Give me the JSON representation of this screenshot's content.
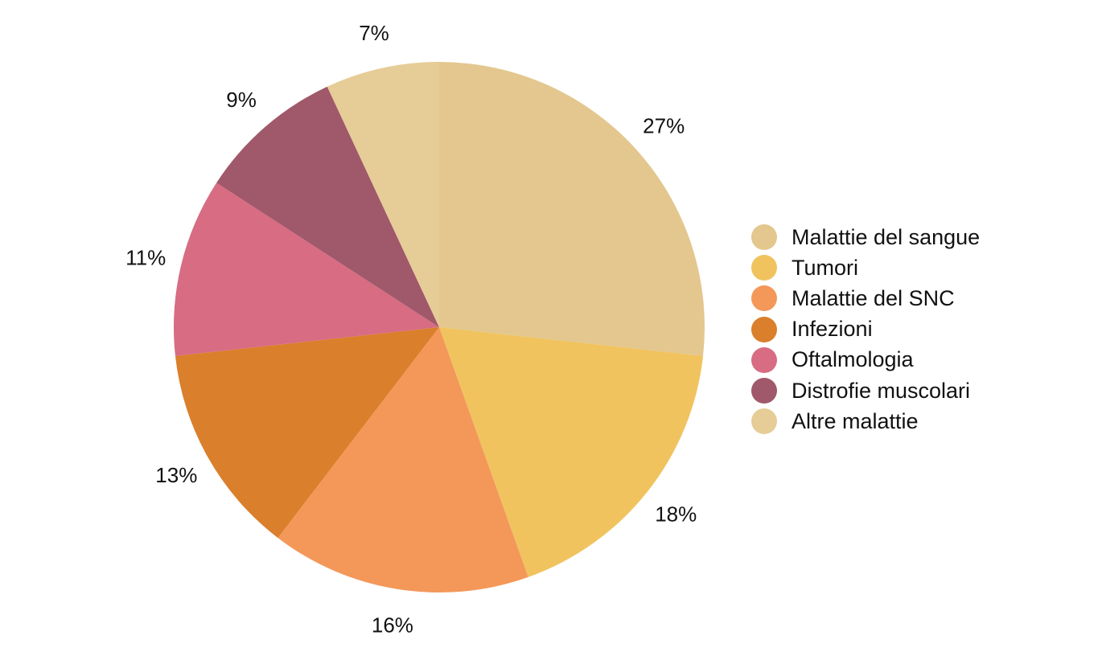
{
  "chart_data": {
    "type": "pie",
    "title": "",
    "start_angle_deg": 0,
    "direction": "clockwise",
    "legend_position": "right",
    "slices": [
      {
        "label": "Malattie del sangue",
        "value": 27,
        "display": "27%",
        "color": "#E3C78F"
      },
      {
        "label": "Tumori",
        "value": 18,
        "display": "18%",
        "color": "#F0C35F"
      },
      {
        "label": "Malattie del SNC",
        "value": 16,
        "display": "16%",
        "color": "#F39859"
      },
      {
        "label": "Infezioni",
        "value": 13,
        "display": "13%",
        "color": "#DA7F2B"
      },
      {
        "label": "Oftalmologia",
        "value": 11,
        "display": "11%",
        "color": "#D76C83"
      },
      {
        "label": "Distrofie muscolari",
        "value": 9,
        "display": "9%",
        "color": "#A0586B"
      },
      {
        "label": "Altre malattie",
        "value": 7,
        "display": "7%",
        "color": "#E6CC96"
      }
    ]
  }
}
